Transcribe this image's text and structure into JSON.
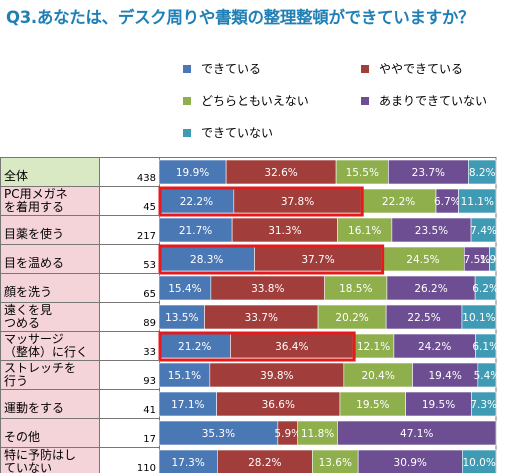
{
  "title": "Q3.あなたは、デスク周りや書類の整理整頓ができていますか？",
  "chart_data": {
    "type": "bar",
    "orientation": "horizontal-stacked-100",
    "series": [
      {
        "name": "できている",
        "color": "#4a78b5"
      },
      {
        "name": "ややできている",
        "color": "#a13d3a"
      },
      {
        "name": "どちらともいえない",
        "color": "#8fae4c"
      },
      {
        "name": "あまりできていない",
        "color": "#6d4e92"
      },
      {
        "name": "できていない",
        "color": "#3f9ab3"
      }
    ],
    "rows": [
      {
        "label": "全体",
        "n": "438",
        "values": [
          19.9,
          32.6,
          15.5,
          23.7,
          8.2
        ],
        "labels": [
          "19.9%",
          "32.6%",
          "15.5%",
          "23.7%",
          "8.2%"
        ],
        "label_bg": "#d9e9c3",
        "highlight": false
      },
      {
        "label": "PC用メガネを着用する",
        "n": "45",
        "values": [
          22.2,
          37.8,
          22.2,
          6.7,
          11.1
        ],
        "labels": [
          "22.2%",
          "37.8%",
          "22.2%",
          "6.7%",
          "11.1%"
        ],
        "label_bg": "#f4d3d9",
        "highlight": true
      },
      {
        "label": "目薬を使う",
        "n": "217",
        "values": [
          21.7,
          31.3,
          16.1,
          23.5,
          7.4
        ],
        "labels": [
          "21.7%",
          "31.3%",
          "16.1%",
          "23.5%",
          "7.4%"
        ],
        "label_bg": "#f4d3d9",
        "highlight": false
      },
      {
        "label": "目を温める",
        "n": "53",
        "values": [
          28.3,
          37.7,
          24.5,
          7.5,
          1.9
        ],
        "labels": [
          "28.3%",
          "37.7%",
          "24.5%",
          "7.5%",
          "1.9%"
        ],
        "label_bg": "#f4d3d9",
        "highlight": true
      },
      {
        "label": "顔を洗う",
        "n": "65",
        "values": [
          15.4,
          33.8,
          18.5,
          26.2,
          6.2
        ],
        "labels": [
          "15.4%",
          "33.8%",
          "18.5%",
          "26.2%",
          "6.2%"
        ],
        "label_bg": "#f4d3d9",
        "highlight": false
      },
      {
        "label": "遠くを見つめる",
        "n": "89",
        "values": [
          13.5,
          33.7,
          20.2,
          22.5,
          10.1
        ],
        "labels": [
          "13.5%",
          "33.7%",
          "20.2%",
          "22.5%",
          "10.1%"
        ],
        "label_bg": "#f4d3d9",
        "highlight": false
      },
      {
        "label": "マッサージ（整体）に行く",
        "n": "33",
        "values": [
          21.2,
          36.4,
          12.1,
          24.2,
          6.1
        ],
        "labels": [
          "21.2%",
          "36.4%",
          "12.1%",
          "24.2%",
          "6.1%"
        ],
        "label_bg": "#f4d3d9",
        "highlight": true
      },
      {
        "label": "ストレッチを行う",
        "n": "93",
        "values": [
          15.1,
          39.8,
          20.4,
          19.4,
          5.4
        ],
        "labels": [
          "15.1%",
          "39.8%",
          "20.4%",
          "19.4%",
          "5.4%"
        ],
        "label_bg": "#f4d3d9",
        "highlight": false
      },
      {
        "label": "運動をする",
        "n": "41",
        "values": [
          17.1,
          36.6,
          19.5,
          19.5,
          7.3
        ],
        "labels": [
          "17.1%",
          "36.6%",
          "19.5%",
          "19.5%",
          "7.3%"
        ],
        "label_bg": "#f4d3d9",
        "highlight": false
      },
      {
        "label": "その他",
        "n": "17",
        "values": [
          35.3,
          5.9,
          11.8,
          47.1,
          0
        ],
        "labels": [
          "35.3%",
          "5.9%",
          "11.8%",
          "47.1%",
          ""
        ],
        "label_bg": "#f4d3d9",
        "highlight": false
      },
      {
        "label": "特に予防はしていない",
        "n": "110",
        "values": [
          17.3,
          28.2,
          13.6,
          30.9,
          10.0
        ],
        "labels": [
          "17.3%",
          "28.2%",
          "13.6%",
          "30.9%",
          "10.0%"
        ],
        "label_bg": "#f4d3d9",
        "highlight": false
      }
    ],
    "highlight_color": "#e8191c"
  }
}
